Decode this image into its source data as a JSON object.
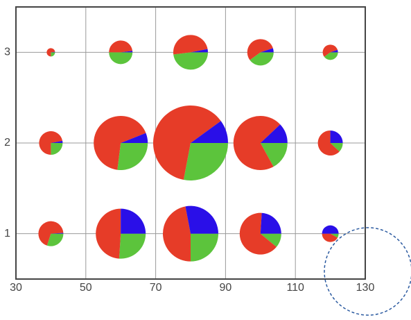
{
  "chart_data": {
    "type": "pie-scatter",
    "colors": [
      "#5cc43c",
      "#e63c28",
      "#2a0fe8"
    ],
    "xlim": [
      30,
      130
    ],
    "xticks": [
      30,
      50,
      70,
      90,
      110,
      130
    ],
    "ylim": [
      0.5,
      3.5
    ],
    "yticks": [
      1,
      2,
      3
    ],
    "grid": true,
    "points": [
      {
        "x": 40,
        "y": 3,
        "size": 6,
        "values": [
          25,
          73,
          2
        ]
      },
      {
        "x": 60,
        "y": 3,
        "size": 17,
        "values": [
          50,
          48,
          2
        ]
      },
      {
        "x": 80,
        "y": 3,
        "size": 25,
        "values": [
          48,
          49,
          3
        ]
      },
      {
        "x": 100,
        "y": 3,
        "size": 19,
        "values": [
          40,
          55,
          5
        ]
      },
      {
        "x": 120,
        "y": 3,
        "size": 11,
        "values": [
          40,
          55,
          5
        ]
      },
      {
        "x": 40,
        "y": 2,
        "size": 17,
        "values": [
          25,
          72,
          3
        ]
      },
      {
        "x": 60,
        "y": 2,
        "size": 39,
        "values": [
          27,
          67,
          6
        ]
      },
      {
        "x": 80,
        "y": 2,
        "size": 54,
        "values": [
          28,
          62,
          10
        ]
      },
      {
        "x": 100,
        "y": 2,
        "size": 39,
        "values": [
          17,
          71,
          12
        ]
      },
      {
        "x": 120,
        "y": 2,
        "size": 18,
        "values": [
          12,
          63,
          25
        ]
      },
      {
        "x": 40,
        "y": 1,
        "size": 18,
        "values": [
          30,
          69,
          1
        ]
      },
      {
        "x": 60,
        "y": 1,
        "size": 36,
        "values": [
          26,
          49,
          25
        ]
      },
      {
        "x": 80,
        "y": 1,
        "size": 40,
        "values": [
          25,
          47,
          28
        ]
      },
      {
        "x": 100,
        "y": 1,
        "size": 30,
        "values": [
          11,
          65,
          24
        ]
      },
      {
        "x": 120,
        "y": 1,
        "size": 12,
        "values": [
          8,
          42,
          50
        ]
      }
    ]
  }
}
